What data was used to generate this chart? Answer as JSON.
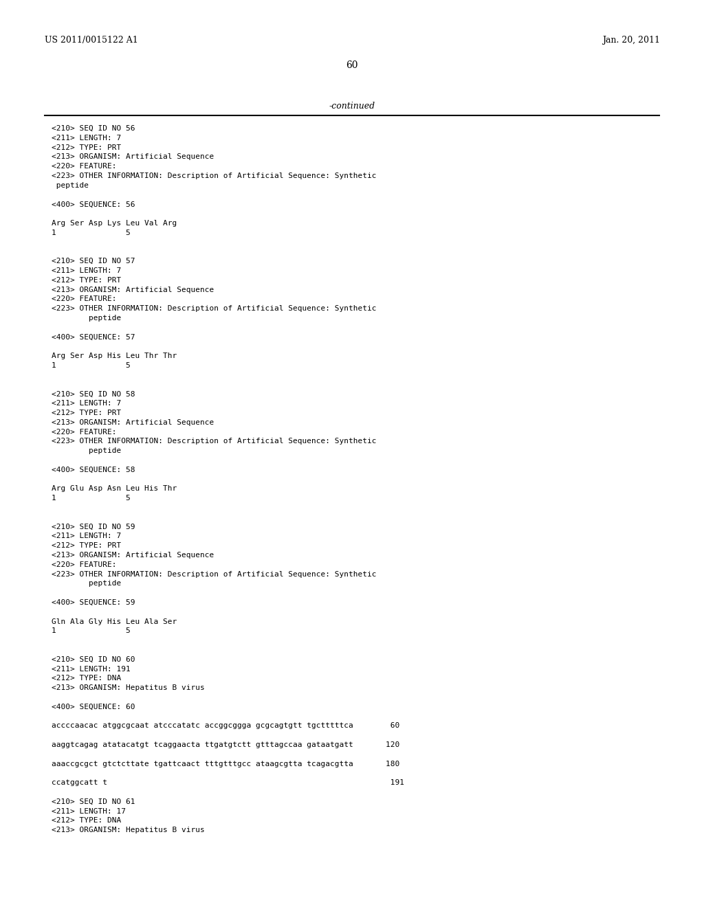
{
  "header_left": "US 2011/0015122 A1",
  "header_right": "Jan. 20, 2011",
  "page_number": "60",
  "continued_text": "-continued",
  "background_color": "#ffffff",
  "text_color": "#000000",
  "content_lines": [
    "<210> SEQ ID NO 56",
    "<211> LENGTH: 7",
    "<212> TYPE: PRT",
    "<213> ORGANISM: Artificial Sequence",
    "<220> FEATURE:",
    "<223> OTHER INFORMATION: Description of Artificial Sequence: Synthetic",
    " peptide",
    "",
    "<400> SEQUENCE: 56",
    "",
    "Arg Ser Asp Lys Leu Val Arg",
    "1               5",
    "",
    "",
    "<210> SEQ ID NO 57",
    "<211> LENGTH: 7",
    "<212> TYPE: PRT",
    "<213> ORGANISM: Artificial Sequence",
    "<220> FEATURE:",
    "<223> OTHER INFORMATION: Description of Artificial Sequence: Synthetic",
    "        peptide",
    "",
    "<400> SEQUENCE: 57",
    "",
    "Arg Ser Asp His Leu Thr Thr",
    "1               5",
    "",
    "",
    "<210> SEQ ID NO 58",
    "<211> LENGTH: 7",
    "<212> TYPE: PRT",
    "<213> ORGANISM: Artificial Sequence",
    "<220> FEATURE:",
    "<223> OTHER INFORMATION: Description of Artificial Sequence: Synthetic",
    "        peptide",
    "",
    "<400> SEQUENCE: 58",
    "",
    "Arg Glu Asp Asn Leu His Thr",
    "1               5",
    "",
    "",
    "<210> SEQ ID NO 59",
    "<211> LENGTH: 7",
    "<212> TYPE: PRT",
    "<213> ORGANISM: Artificial Sequence",
    "<220> FEATURE:",
    "<223> OTHER INFORMATION: Description of Artificial Sequence: Synthetic",
    "        peptide",
    "",
    "<400> SEQUENCE: 59",
    "",
    "Gln Ala Gly His Leu Ala Ser",
    "1               5",
    "",
    "",
    "<210> SEQ ID NO 60",
    "<211> LENGTH: 191",
    "<212> TYPE: DNA",
    "<213> ORGANISM: Hepatitus B virus",
    "",
    "<400> SEQUENCE: 60",
    "",
    "accccaacac atggcgcaat atcccatatc accggcggga gcgcagtgtt tgctttttca        60",
    "",
    "aaggtcagag atatacatgt tcaggaacta ttgatgtctt gtttagccaa gataatgatt       120",
    "",
    "aaaccgcgct gtctcttate tgattcaact tttgtttgcc ataagcgtta tcagacgtta       180",
    "",
    "ccatggcatt t                                                             191",
    "",
    "<210> SEQ ID NO 61",
    "<211> LENGTH: 17",
    "<212> TYPE: DNA",
    "<213> ORGANISM: Hepatitus B virus"
  ]
}
